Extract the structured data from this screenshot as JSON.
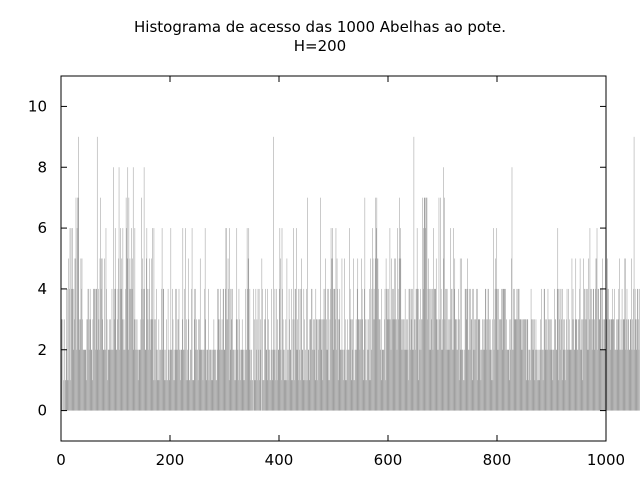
{
  "chart_data": {
    "type": "bar",
    "title": "Histograma de acesso das 1000 Abelhas ao pote.",
    "subtitle": "H=200",
    "xlabel": "",
    "ylabel": "",
    "xlim": [
      0,
      1000
    ],
    "ylim": [
      -1,
      11
    ],
    "xticks": [
      "0",
      "200",
      "400",
      "600",
      "800",
      "1000"
    ],
    "yticks": [
      "0",
      "2",
      "4",
      "6",
      "8",
      "10"
    ],
    "grid": false,
    "bar_color": "#a0a0a0",
    "x": {
      "start": 0,
      "end": 999,
      "step": 1
    },
    "values": [
      1,
      3,
      0,
      3,
      1,
      0,
      3,
      1,
      1,
      2,
      4,
      1,
      4,
      5,
      1,
      4,
      6,
      1,
      6,
      4,
      4,
      6,
      2,
      4,
      3,
      5,
      5,
      7,
      2,
      6,
      7,
      7,
      9,
      3,
      2,
      3,
      5,
      4,
      5,
      3,
      2,
      2,
      2,
      2,
      2,
      2,
      1,
      3,
      3,
      4,
      4,
      2,
      3,
      4,
      3,
      2,
      2,
      1,
      3,
      4,
      4,
      4,
      4,
      2,
      4,
      4,
      9,
      2,
      4,
      3,
      2,
      5,
      7,
      4,
      5,
      5,
      3,
      2,
      2,
      5,
      2,
      2,
      6,
      4,
      3,
      1,
      2,
      2,
      3,
      2,
      3,
      2,
      2,
      4,
      2,
      2,
      8,
      3,
      4,
      6,
      4,
      2,
      2,
      3,
      4,
      5,
      8,
      2,
      4,
      6,
      4,
      5,
      3,
      6,
      2,
      3,
      2,
      2,
      4,
      7,
      6,
      5,
      8,
      2,
      7,
      4,
      5,
      4,
      4,
      6,
      4,
      5,
      8,
      2,
      3,
      6,
      2,
      3,
      2,
      3,
      2,
      1,
      2,
      2,
      2,
      2,
      3,
      7,
      4,
      5,
      3,
      4,
      8,
      4,
      2,
      2,
      5,
      6,
      4,
      3,
      2,
      4,
      5,
      3,
      2,
      3,
      5,
      6,
      3,
      1,
      6,
      3,
      1,
      3,
      2,
      4,
      1,
      2,
      1,
      3,
      2,
      1,
      2,
      2,
      4,
      6,
      2,
      4,
      4,
      1,
      2,
      1,
      2,
      3,
      1,
      1,
      4,
      2,
      2,
      1,
      2,
      6,
      2,
      2,
      4,
      3,
      1,
      2,
      1,
      2,
      4,
      4,
      2,
      2,
      3,
      3,
      4,
      2,
      2,
      1,
      2,
      2,
      3,
      6,
      2,
      2,
      4,
      2,
      6,
      1,
      3,
      1,
      2,
      5,
      3,
      1,
      1,
      2,
      2,
      4,
      6,
      1,
      1,
      1,
      4,
      3,
      4,
      2,
      3,
      2,
      2,
      1,
      3,
      2,
      3,
      5,
      2,
      2,
      2,
      2,
      1,
      2,
      2,
      4,
      6,
      3,
      1,
      2,
      2,
      2,
      4,
      1,
      2,
      2,
      2,
      2,
      1,
      2,
      1,
      2,
      3,
      2,
      2,
      2,
      1,
      1,
      2,
      4,
      4,
      3,
      2,
      3,
      4,
      2,
      2,
      3,
      2,
      4,
      4,
      2,
      2,
      4,
      6,
      6,
      3,
      3,
      5,
      4,
      1,
      6,
      4,
      2,
      3,
      4,
      4,
      2,
      2,
      2,
      1,
      2,
      1,
      3,
      6,
      3,
      2,
      1,
      4,
      3,
      2,
      1,
      2,
      2,
      3,
      2,
      2,
      1,
      1,
      2,
      4,
      2,
      2,
      6,
      4,
      5,
      6,
      2,
      4,
      1,
      2,
      2,
      1,
      1,
      0,
      4,
      1,
      3,
      1,
      4,
      2,
      3,
      1,
      4,
      2,
      4,
      1,
      2,
      3,
      0,
      5,
      4,
      1,
      1,
      1,
      3,
      3,
      4,
      2,
      2,
      4,
      1,
      3,
      2,
      2,
      1,
      1,
      2,
      4,
      1,
      2,
      9,
      2,
      2,
      4,
      1,
      2,
      4,
      1,
      3,
      2,
      2,
      4,
      6,
      5,
      2,
      1,
      6,
      4,
      3,
      2,
      2,
      1,
      1,
      3,
      1,
      5,
      2,
      1,
      2,
      4,
      3,
      2,
      2,
      4,
      1,
      1,
      3,
      6,
      3,
      1,
      4,
      4,
      2,
      6,
      3,
      2,
      4,
      1,
      2,
      4,
      1,
      4,
      5,
      2,
      2,
      1,
      4,
      3,
      1,
      2,
      1,
      4,
      1,
      7,
      2,
      2,
      1,
      3,
      3,
      3,
      4,
      4,
      2,
      2,
      3,
      2,
      3,
      1,
      4,
      3,
      3,
      1,
      3,
      2,
      3,
      3,
      3,
      7,
      2,
      3,
      3,
      1,
      3,
      4,
      3,
      4,
      5,
      2,
      3,
      2,
      4,
      4,
      1,
      1,
      3,
      4,
      6,
      5,
      5,
      6,
      4,
      2,
      4,
      4,
      3,
      6,
      2,
      5,
      4,
      1,
      3,
      3,
      4,
      2,
      2,
      2,
      5,
      2,
      2,
      1,
      2,
      5,
      3,
      1,
      1,
      2,
      3,
      2,
      2,
      2,
      6,
      4,
      3,
      3,
      1,
      3,
      2,
      5,
      1,
      1,
      2,
      2,
      3,
      2,
      4,
      5,
      3,
      3,
      3,
      2,
      3,
      3,
      5,
      4,
      3,
      1,
      2,
      4,
      7,
      3,
      1,
      1,
      3,
      2,
      2,
      3,
      1,
      4,
      5,
      1,
      2,
      4,
      6,
      5,
      3,
      4,
      3,
      5,
      7,
      6,
      7,
      5,
      5,
      4,
      3,
      3,
      3,
      2,
      1,
      4,
      2,
      2,
      2,
      2,
      3,
      4,
      1,
      5,
      4,
      4,
      3,
      4,
      3,
      3,
      6,
      3,
      2,
      5,
      3,
      4,
      3,
      4,
      5,
      3,
      5,
      3,
      3,
      2,
      6,
      4,
      3,
      5,
      7,
      6,
      5,
      3,
      2,
      3,
      2,
      3,
      3,
      2,
      4,
      2,
      3,
      2,
      3,
      2,
      1,
      4,
      4,
      4,
      2,
      3,
      4,
      4,
      2,
      2,
      9,
      3,
      3,
      2,
      4,
      4,
      6,
      4,
      4,
      1,
      3,
      2,
      4,
      2,
      3,
      3,
      7,
      4,
      6,
      7,
      7,
      6,
      7,
      7,
      7,
      3,
      4,
      5,
      2,
      4,
      2,
      4,
      3,
      4,
      4,
      2,
      6,
      4,
      4,
      4,
      4,
      5,
      3,
      2,
      3,
      2,
      7,
      3,
      3,
      7,
      4,
      2,
      2,
      3,
      8,
      5,
      7,
      3,
      4,
      2,
      4,
      4,
      2,
      3,
      2,
      3,
      2,
      6,
      3,
      4,
      4,
      2,
      2,
      6,
      4,
      5,
      3,
      3,
      3,
      2,
      2,
      3,
      4,
      1,
      3,
      5,
      2,
      5,
      2,
      2,
      2,
      1,
      1,
      2,
      4,
      4,
      3,
      4,
      5,
      4,
      2,
      2,
      4,
      2,
      4,
      3,
      3,
      1,
      4,
      4,
      2,
      3,
      2,
      3,
      3,
      4,
      1,
      4,
      3,
      3,
      3,
      3,
      2,
      1,
      2,
      2,
      3,
      3,
      2,
      2,
      3,
      4,
      4,
      3,
      2,
      3,
      4,
      4,
      2,
      3,
      3,
      2,
      2,
      1,
      3,
      1,
      6,
      2,
      3,
      4,
      5,
      4,
      6,
      4,
      2,
      4,
      2,
      3,
      3,
      3,
      3,
      4,
      2,
      4,
      4,
      4,
      4,
      4,
      4,
      2,
      3,
      2,
      2,
      2,
      2,
      1,
      3,
      2,
      3,
      5,
      8,
      2,
      2,
      4,
      3,
      4,
      3,
      3,
      3,
      4,
      3,
      4,
      4,
      4,
      3,
      3,
      3,
      3,
      2,
      3,
      2,
      3,
      3,
      3,
      3,
      3,
      3,
      1,
      3,
      3,
      1,
      2,
      2,
      2,
      1,
      4,
      3,
      2,
      3,
      2,
      3,
      3,
      1,
      2,
      3,
      2,
      2,
      1,
      2,
      1,
      1,
      2,
      3,
      2,
      4,
      2,
      2,
      1,
      2,
      4,
      4,
      3,
      2,
      3,
      2,
      2,
      4,
      3,
      2,
      3,
      2,
      3,
      3,
      2,
      2,
      1,
      2,
      2,
      4,
      3,
      3,
      2,
      2,
      4,
      6,
      4,
      1,
      3,
      4,
      2,
      4,
      3,
      1,
      4,
      3,
      2,
      3,
      2,
      1,
      2,
      3,
      4,
      2,
      2,
      4,
      3,
      2,
      2,
      2,
      2,
      5,
      3,
      4,
      3,
      2,
      2,
      3,
      5,
      3,
      3,
      2,
      2,
      3,
      3,
      4,
      5,
      2,
      2,
      3,
      3,
      1,
      5,
      3,
      4,
      4,
      3,
      3,
      4,
      2,
      4,
      5,
      2,
      3,
      6,
      4,
      3,
      4,
      2,
      3,
      4,
      4,
      3,
      2,
      4,
      5,
      5,
      6,
      2,
      4,
      4,
      3,
      3,
      4,
      4,
      2,
      4,
      5,
      3,
      2,
      3,
      3,
      2,
      2,
      3,
      3,
      5,
      4,
      4,
      3,
      3,
      3,
      2,
      3,
      3,
      4,
      3,
      3,
      3,
      4,
      2,
      2,
      2,
      3,
      2,
      3,
      3,
      4,
      5,
      2,
      2,
      3,
      2,
      4,
      2,
      3,
      3,
      3,
      5,
      5,
      2,
      3,
      4,
      2,
      3,
      3,
      2,
      2,
      3,
      3,
      5,
      2,
      3,
      2,
      4,
      9,
      2,
      4,
      3,
      2,
      3,
      4,
      4,
      3,
      2,
      4
    ]
  }
}
